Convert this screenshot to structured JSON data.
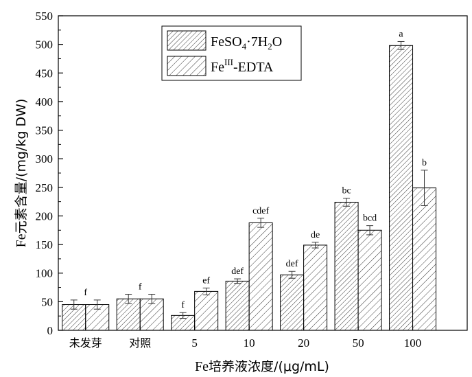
{
  "chart_data": {
    "type": "bar",
    "xlabel_prefix": "Fe",
    "xlabel_cn": "培养液浓度/(",
    "xlabel_unit": "μg/mL)",
    "ylabel_prefix": "Fe",
    "ylabel_cn": "元素含量/(mg/kg DW)",
    "ylim": [
      0,
      550
    ],
    "yticks": [
      0,
      50,
      100,
      150,
      200,
      250,
      300,
      350,
      400,
      450,
      500,
      550
    ],
    "grid": false,
    "legend_position": "top-center",
    "categories": [
      "未发芽",
      "对照",
      "5",
      "10",
      "20",
      "50",
      "100"
    ],
    "series": [
      {
        "name": "FeSO4·7H2O",
        "legend_parts": [
          "FeSO",
          "4",
          "·7H",
          "2",
          "O"
        ],
        "hatch": "diagonal-dense",
        "values": [
          45,
          55,
          26,
          86,
          97,
          224,
          498
        ],
        "errors": [
          8,
          8,
          5,
          4,
          6,
          7,
          7
        ],
        "labels": [
          "f",
          "f",
          "f",
          "def",
          "def",
          "bc",
          "a"
        ]
      },
      {
        "name": "FeIII-EDTA",
        "legend_parts": [
          "Fe",
          "III",
          "-EDTA"
        ],
        "hatch": "diagonal-sparse",
        "values": [
          45,
          55,
          68,
          188,
          149,
          175,
          249
        ],
        "errors": [
          8,
          8,
          6,
          8,
          5,
          8,
          31
        ],
        "labels": [
          "",
          "",
          "ef",
          "cdef",
          "de",
          "bcd",
          "b"
        ]
      }
    ]
  }
}
